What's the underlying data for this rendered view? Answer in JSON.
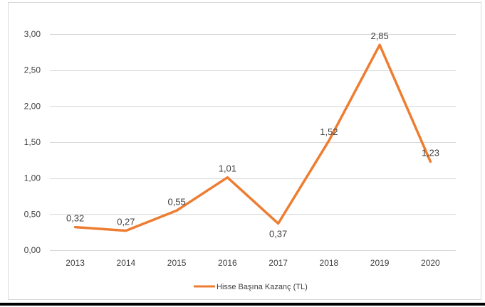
{
  "chart_data": {
    "type": "line",
    "title": "",
    "xlabel": "",
    "ylabel": "",
    "categories": [
      "2013",
      "2014",
      "2015",
      "2016",
      "2017",
      "2018",
      "2019",
      "2020"
    ],
    "series": [
      {
        "name": "Hisse Başına Kazanç (TL)",
        "values": [
          0.32,
          0.27,
          0.55,
          1.01,
          0.37,
          1.52,
          2.85,
          1.23
        ],
        "data_labels": [
          "0,32",
          "0,27",
          "0,55",
          "1,01",
          "0,37",
          "1,52",
          "2,85",
          "1,23"
        ],
        "color": "#ED7D31"
      }
    ],
    "ylim": [
      0,
      3
    ],
    "yticks": [
      0,
      0.5,
      1,
      1.5,
      2,
      2.5,
      3
    ],
    "ytick_labels": [
      "0,00",
      "0,50",
      "1,00",
      "1,50",
      "2,00",
      "2,50",
      "3,00"
    ],
    "grid": true,
    "gridline_color": "#D9D9D9",
    "legend_position": "bottom"
  }
}
